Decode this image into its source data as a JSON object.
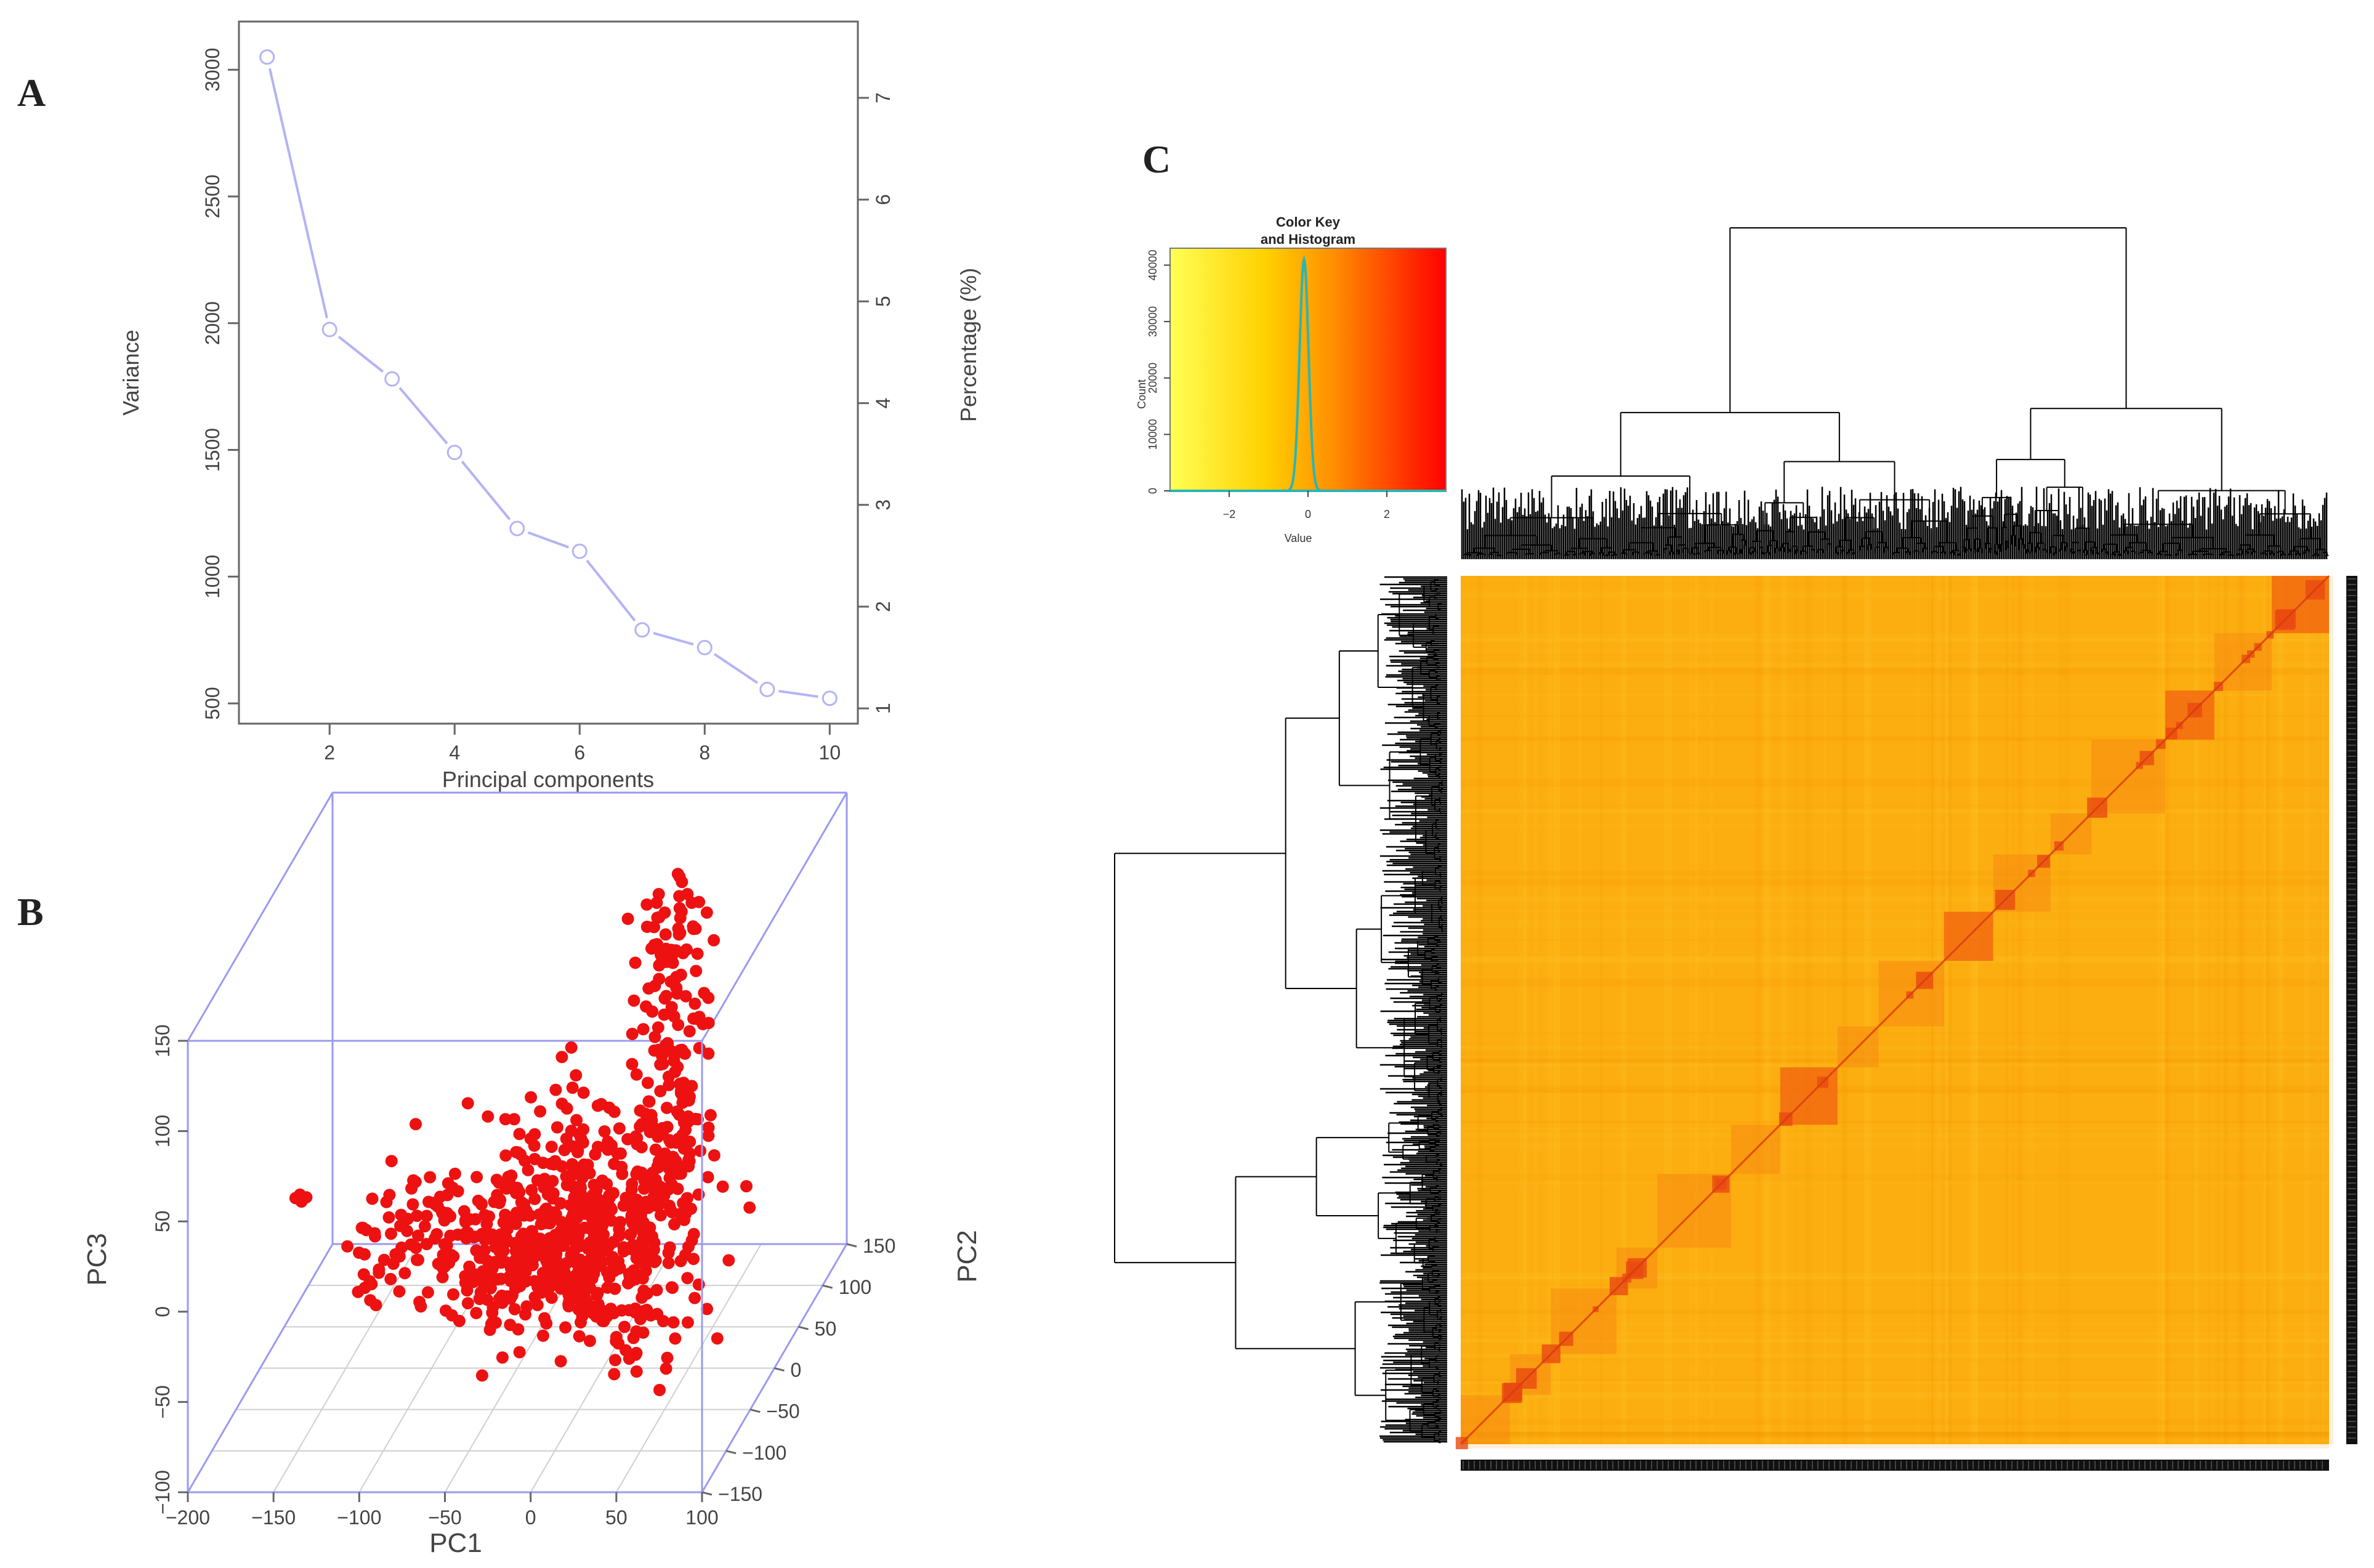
{
  "panels": {
    "a": "A",
    "b": "B",
    "c": "C"
  },
  "chart_data": [
    {
      "panel": "A",
      "type": "line",
      "title": "",
      "xlabel": "Principal components",
      "ylabel": "Variance",
      "y2label": "Percentage (%)",
      "x": [
        1,
        2,
        3,
        4,
        5,
        6,
        7,
        8,
        9,
        10
      ],
      "values": [
        3050,
        1975,
        1780,
        1490,
        1190,
        1100,
        790,
        720,
        555,
        520
      ],
      "xticks": [
        2,
        4,
        6,
        8,
        10
      ],
      "yticks": [
        500,
        1000,
        1500,
        2000,
        2500,
        3000
      ],
      "y2ticks": [
        1,
        2,
        3,
        4,
        5,
        6,
        7
      ],
      "xlim": [
        0.55,
        10.45
      ],
      "ylim": [
        420,
        3190
      ],
      "y2lim": [
        0.85,
        7.75
      ],
      "line_color": "#b3b3f5"
    },
    {
      "panel": "B",
      "type": "scatter",
      "title": "",
      "xlabel": "PC1",
      "ylabel": "PC2",
      "zlabel": "PC3",
      "xlim": [
        -200,
        100
      ],
      "ylim": [
        -150,
        150
      ],
      "zlim": [
        -100,
        150
      ],
      "xticks": [
        -200,
        -150,
        -100,
        -50,
        0,
        50,
        100
      ],
      "yticks": [
        -150,
        -100,
        -50,
        0,
        50,
        100,
        150
      ],
      "zticks": [
        -100,
        -50,
        0,
        50,
        100,
        150
      ],
      "point_color": "#ee1111",
      "box_color": "#9a9af0",
      "n_points": 900,
      "note": "3D scatter of samples on PC1/PC2/PC3; dense cluster near PC1 0 to 50, spreading up to PC3 about 150"
    },
    {
      "panel": "C",
      "type": "heatmap",
      "title": "",
      "key_title_line1": "Color Key",
      "key_title_line2": "and Histogram",
      "key_xlabel": "Value",
      "key_ylabel": "Count",
      "key_xticks": [
        -2,
        0,
        2
      ],
      "key_yticks": [
        0,
        10000,
        20000,
        30000,
        40000
      ],
      "key_xlim": [
        -3.5,
        3.5
      ],
      "key_ylim": [
        0,
        43000
      ],
      "color_scale": [
        "#ffff40",
        "#ffcc00",
        "#ff6a00",
        "#ff0000"
      ],
      "histogram_color": "#2ab5b5",
      "block_size_fractions": [
        0.07,
        0.07,
        0.06,
        0.09,
        0.05,
        0.07,
        0.06,
        0.08,
        0.05,
        0.07,
        0.06,
        0.09,
        0.05,
        0.08,
        0.05,
        0.06
      ],
      "strong_block_indices": [
        0,
        2,
        6,
        9
      ]
    }
  ]
}
